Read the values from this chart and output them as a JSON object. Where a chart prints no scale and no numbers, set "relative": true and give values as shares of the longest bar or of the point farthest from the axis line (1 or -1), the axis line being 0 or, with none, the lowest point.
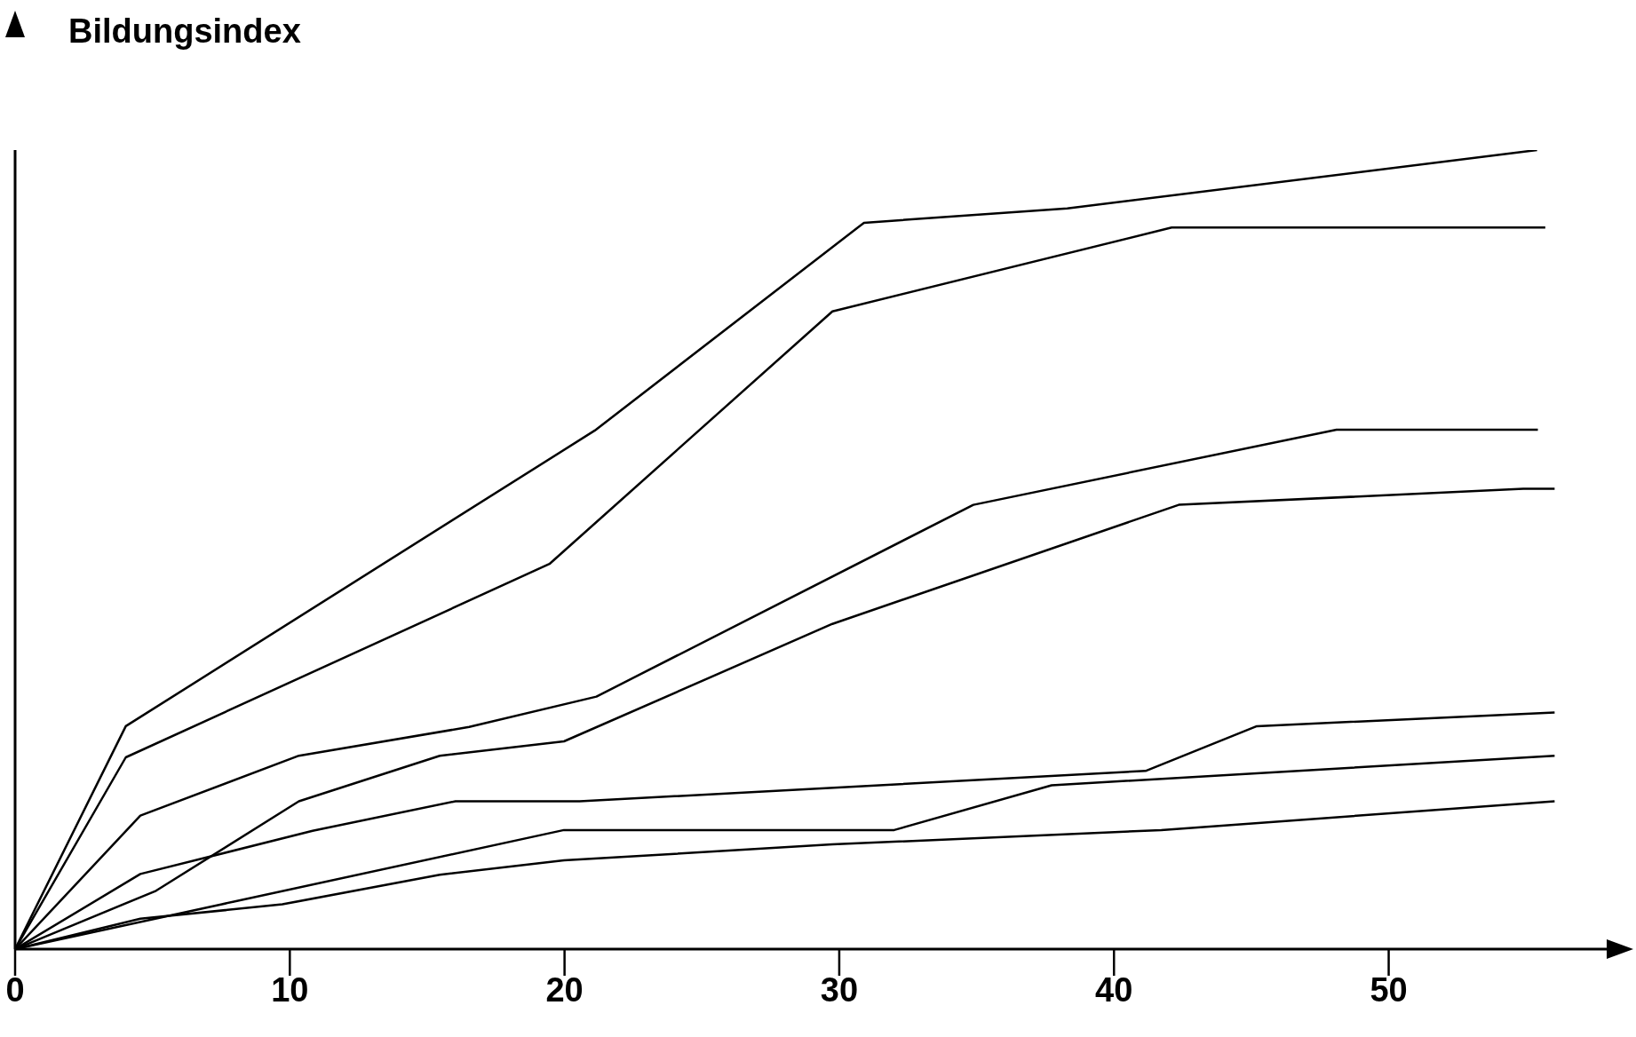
{
  "chart_data": {
    "type": "line",
    "ylabel": "Bildungsindex",
    "relative": true,
    "xlim": [
      0,
      58
    ],
    "xticks": [
      0,
      10,
      20,
      30,
      40,
      50
    ],
    "grid": false,
    "marker": "none",
    "line_style": "solid",
    "series": [
      {
        "color": "#000000",
        "x": [
          0,
          4.03,
          21.1,
          30.9,
          38.3,
          55.4
        ],
        "values": [
          0,
          0.279,
          0.649,
          0.909,
          0.927,
          1
        ]
      },
      {
        "color": "#000000",
        "x": [
          0,
          4.03,
          19.45,
          29.75,
          42.1,
          55.7
        ],
        "values": [
          0,
          0.24,
          0.482,
          0.798,
          0.903,
          0.903
        ]
      },
      {
        "color": "#000000",
        "x": [
          0,
          4.56,
          10.33,
          16.53,
          21.16,
          34.88,
          48.1,
          55.43
        ],
        "values": [
          0,
          0.167,
          0.242,
          0.278,
          0.316,
          0.556,
          0.65,
          0.65
        ]
      },
      {
        "color": "#000000",
        "x": [
          0,
          5.13,
          10.33,
          15.46,
          19.98,
          29.75,
          42.36,
          54.9,
          56.04
        ],
        "values": [
          0,
          0.073,
          0.185,
          0.242,
          0.26,
          0.407,
          0.556,
          0.576,
          0.576
        ]
      },
      {
        "color": "#000000",
        "x": [
          0,
          4.56,
          10.83,
          16.03,
          20.55,
          41.15,
          45.2,
          56.04
        ],
        "values": [
          0,
          0.094,
          0.148,
          0.185,
          0.185,
          0.223,
          0.279,
          0.296
        ]
      },
      {
        "color": "#000000",
        "x": [
          0,
          19.98,
          32,
          37.73,
          56.04
        ],
        "values": [
          0,
          0.149,
          0.149,
          0.205,
          0.242
        ]
      },
      {
        "color": "#000000",
        "x": [
          0,
          4.56,
          9.73,
          15.46,
          19.98,
          29.75,
          41.72,
          56.04
        ],
        "values": [
          0,
          0.038,
          0.056,
          0.093,
          0.111,
          0.131,
          0.149,
          0.185
        ]
      }
    ]
  }
}
